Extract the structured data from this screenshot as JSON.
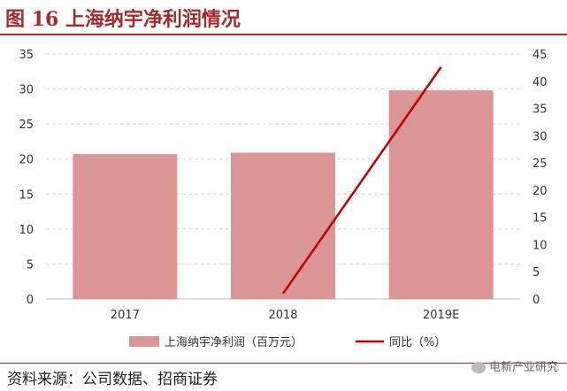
{
  "figure": {
    "title": "图 16 上海纳宇净利润情况",
    "source": "资料来源：公司数据、招商证券",
    "watermark": "电新产业研究"
  },
  "colors": {
    "bar": "#d99694",
    "line": "#c00000",
    "title": "#a52a2a",
    "grid": "#d9d9d9",
    "axis_text": "#333333"
  },
  "chart_data": {
    "type": "bar",
    "categories": [
      "2017",
      "2018",
      "2019E"
    ],
    "series": [
      {
        "name": "上海纳宇净利润（百万元）",
        "type": "bar",
        "axis": "left",
        "values": [
          20.7,
          20.9,
          29.8
        ]
      },
      {
        "name": "同比（%）",
        "type": "line",
        "axis": "right",
        "values": [
          null,
          1.0,
          42.6
        ]
      }
    ],
    "ylim_left": [
      0,
      35
    ],
    "ylim_right": [
      0,
      45
    ],
    "yticks_left": [
      0,
      5,
      10,
      15,
      20,
      25,
      30,
      35
    ],
    "yticks_right": [
      0,
      5,
      10,
      15,
      20,
      25,
      30,
      35,
      40,
      45
    ],
    "grid": "horizontal-dashed",
    "legend_position": "bottom"
  }
}
